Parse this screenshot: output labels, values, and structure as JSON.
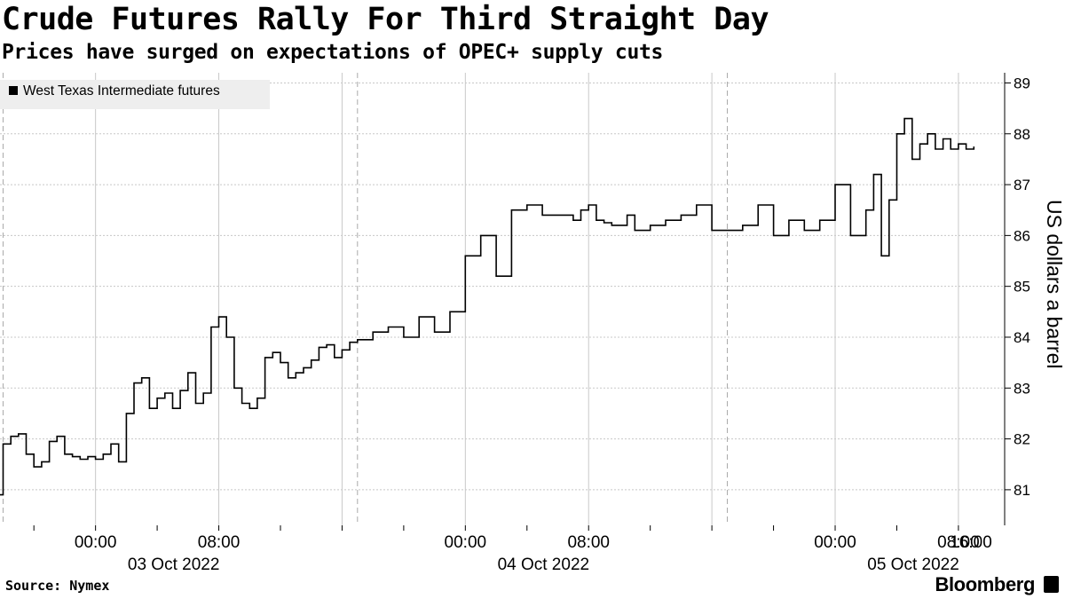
{
  "title": "Crude Futures Rally For Third Straight Day",
  "subtitle": "Prices have surged on expectations of OPEC+ supply cuts",
  "source": "Source: Nymex",
  "brand": "Bloomberg",
  "colors": {
    "line": "#000000",
    "grid": "#c8c8c8",
    "legend_bg": "#eeeeee"
  },
  "chart_data": {
    "type": "line",
    "title": "Crude Futures Rally For Third Straight Day",
    "subtitle": "Prices have surged on expectations of OPEC+ supply cuts",
    "ylabel": "US dollars a barrel",
    "ylim": [
      80.3,
      89.2
    ],
    "y_ticks": [
      81,
      82,
      83,
      84,
      85,
      86,
      87,
      88,
      89
    ],
    "x_ticks": [
      {
        "label": "00:00",
        "date": "03 Oct 2022"
      },
      {
        "label": "08:00",
        "date": ""
      },
      {
        "label": "00:00",
        "date": "04 Oct 2022"
      },
      {
        "label": "08:00",
        "date": ""
      },
      {
        "label": "00:00",
        "date": "05 Oct 2022"
      },
      {
        "label": "08:00",
        "date": ""
      },
      {
        "label": "16:00",
        "date": ""
      }
    ],
    "x_unit": "hours from 00:00 03 Oct 2022",
    "xlim": [
      -6.2,
      59.0
    ],
    "session_breaks": [
      -6,
      17,
      41
    ],
    "grid": true,
    "legend_position": "top-left",
    "series": [
      {
        "name": "West Texas Intermediate futures",
        "x": [
          -6.2,
          -6.0,
          -5.5,
          -5.0,
          -4.5,
          -4.0,
          -3.5,
          -3.0,
          -2.5,
          -2.0,
          -1.5,
          -1.0,
          -0.5,
          0.0,
          0.5,
          1.0,
          1.5,
          2.0,
          2.5,
          3.0,
          3.5,
          4.0,
          4.5,
          5.0,
          5.5,
          6.0,
          6.5,
          7.0,
          7.5,
          8.0,
          8.5,
          9.0,
          9.5,
          10.0,
          10.5,
          11.0,
          11.5,
          12.0,
          12.5,
          13.0,
          13.5,
          14.0,
          14.5,
          15.0,
          15.5,
          16.0,
          16.5,
          17.0,
          18.0,
          19.0,
          20.0,
          21.0,
          22.0,
          23.0,
          24.0,
          25.0,
          26.0,
          27.0,
          28.0,
          29.0,
          30.0,
          31.0,
          31.5,
          32.0,
          32.5,
          33.0,
          33.5,
          34.0,
          34.5,
          35.0,
          36.0,
          37.0,
          38.0,
          39.0,
          40.0,
          41.0,
          42.0,
          43.0,
          44.0,
          45.0,
          46.0,
          47.0,
          48.0,
          49.0,
          50.0,
          50.5,
          51.0,
          51.5,
          52.0,
          52.5,
          53.0,
          53.5,
          54.0,
          54.5,
          55.0,
          55.5,
          56.0,
          56.5,
          57.0
        ],
        "y": [
          80.9,
          81.9,
          82.05,
          82.1,
          81.7,
          81.45,
          81.55,
          81.95,
          82.05,
          81.7,
          81.65,
          81.6,
          81.65,
          81.6,
          81.7,
          81.9,
          81.55,
          82.5,
          83.1,
          83.2,
          82.6,
          82.8,
          82.9,
          82.6,
          82.95,
          83.3,
          82.7,
          82.9,
          84.2,
          84.4,
          84.0,
          83.0,
          82.7,
          82.6,
          82.8,
          83.6,
          83.7,
          83.5,
          83.2,
          83.3,
          83.4,
          83.55,
          83.8,
          83.85,
          83.6,
          83.75,
          83.9,
          83.95,
          84.1,
          84.2,
          84.0,
          84.4,
          84.1,
          84.5,
          85.6,
          86.0,
          85.2,
          86.5,
          86.6,
          86.4,
          86.4,
          86.3,
          86.5,
          86.6,
          86.3,
          86.25,
          86.2,
          86.2,
          86.4,
          86.1,
          86.2,
          86.3,
          86.4,
          86.6,
          86.1,
          86.1,
          86.2,
          86.6,
          86.0,
          86.3,
          86.1,
          86.3,
          87.0,
          86.0,
          86.5,
          87.2,
          85.6,
          86.7,
          88.0,
          88.3,
          87.5,
          87.8,
          88.0,
          87.7,
          87.9,
          87.7,
          87.8,
          87.7,
          87.75
        ]
      }
    ]
  }
}
